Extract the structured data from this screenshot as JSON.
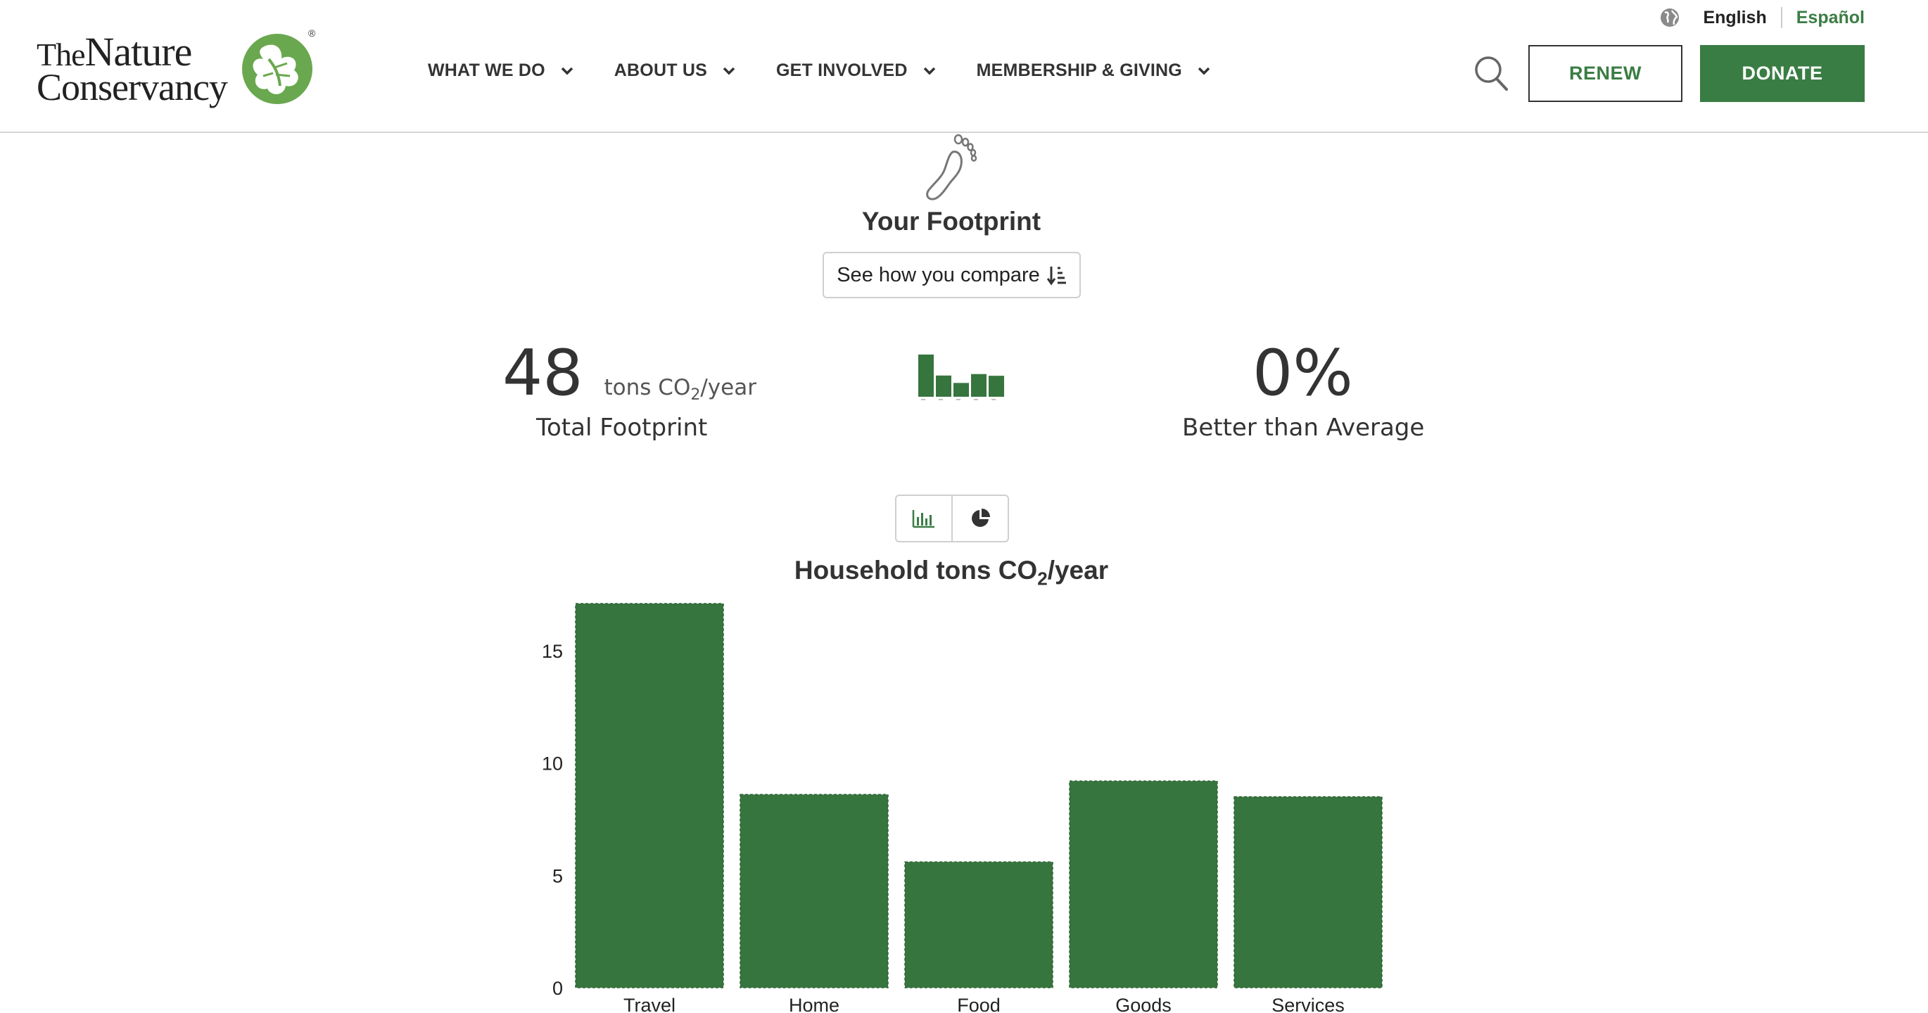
{
  "brand": {
    "logo_line1_small": "The",
    "logo_line1": "Nature",
    "logo_line2": "Conservancy",
    "logo_mark": "®",
    "accent": "#3a7d44"
  },
  "header": {
    "nav": [
      {
        "label": "WHAT WE DO",
        "icon": "chevron-down-icon"
      },
      {
        "label": "ABOUT US",
        "icon": "chevron-down-icon"
      },
      {
        "label": "GET INVOLVED",
        "icon": "chevron-down-icon"
      },
      {
        "label": "MEMBERSHIP & GIVING",
        "icon": "chevron-down-icon"
      }
    ],
    "lang_icon": "globe-icon",
    "lang_current": "English",
    "lang_other": "Español",
    "search_icon": "search-icon",
    "renew_label": "RENEW",
    "donate_label": "DONATE"
  },
  "footprint": {
    "icon": "footprint-icon",
    "title": "Your Footprint",
    "compare_label": "See how you compare",
    "compare_icon": "sort-descending-icon",
    "total_value": "48",
    "total_unit_prefix": "tons CO",
    "total_unit_sub": "2",
    "total_unit_suffix": "/year",
    "total_label": "Total Footprint",
    "better_value": "0%",
    "better_label": "Better than Average",
    "view_bar_icon": "bar-chart-icon",
    "view_pie_icon": "pie-chart-icon"
  },
  "chart_data": {
    "type": "bar",
    "title_prefix": "Household tons CO",
    "title_sub": "2",
    "title_suffix": "/year",
    "categories": [
      "Travel",
      "Home",
      "Food",
      "Goods",
      "Services"
    ],
    "values": [
      17.1,
      8.6,
      5.6,
      9.2,
      8.5
    ],
    "yticks": [
      "0",
      "5",
      "10",
      "15"
    ],
    "ylim": [
      0,
      17.1
    ],
    "bar_color": "#37753f",
    "grid": false
  }
}
